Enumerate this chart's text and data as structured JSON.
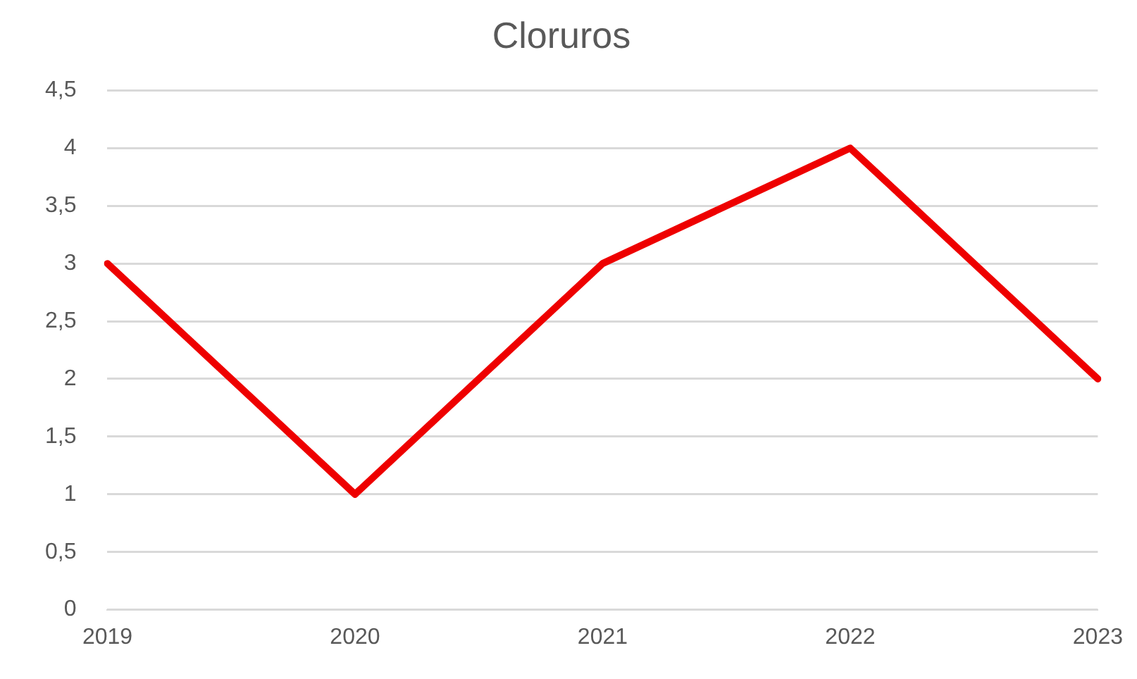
{
  "chart_data": {
    "type": "line",
    "title": "Cloruros",
    "categories": [
      "2019",
      "2020",
      "2021",
      "2022",
      "2023"
    ],
    "series": [
      {
        "color": "#ee0000",
        "values": [
          3,
          1,
          3,
          4,
          2
        ]
      }
    ],
    "ylim": [
      0,
      4.5
    ],
    "yticks": [
      0,
      {
        "value": 0.5,
        "label": "0,5"
      },
      1,
      {
        "value": 1.5,
        "label": "1,5"
      },
      2,
      {
        "value": 2.5,
        "label": "2,5"
      },
      3,
      {
        "value": 3.5,
        "label": "3,5"
      },
      4,
      {
        "value": 4.5,
        "label": "4,5"
      }
    ],
    "grid": "y",
    "legend": false,
    "marker": "none",
    "line_style": "solid"
  }
}
